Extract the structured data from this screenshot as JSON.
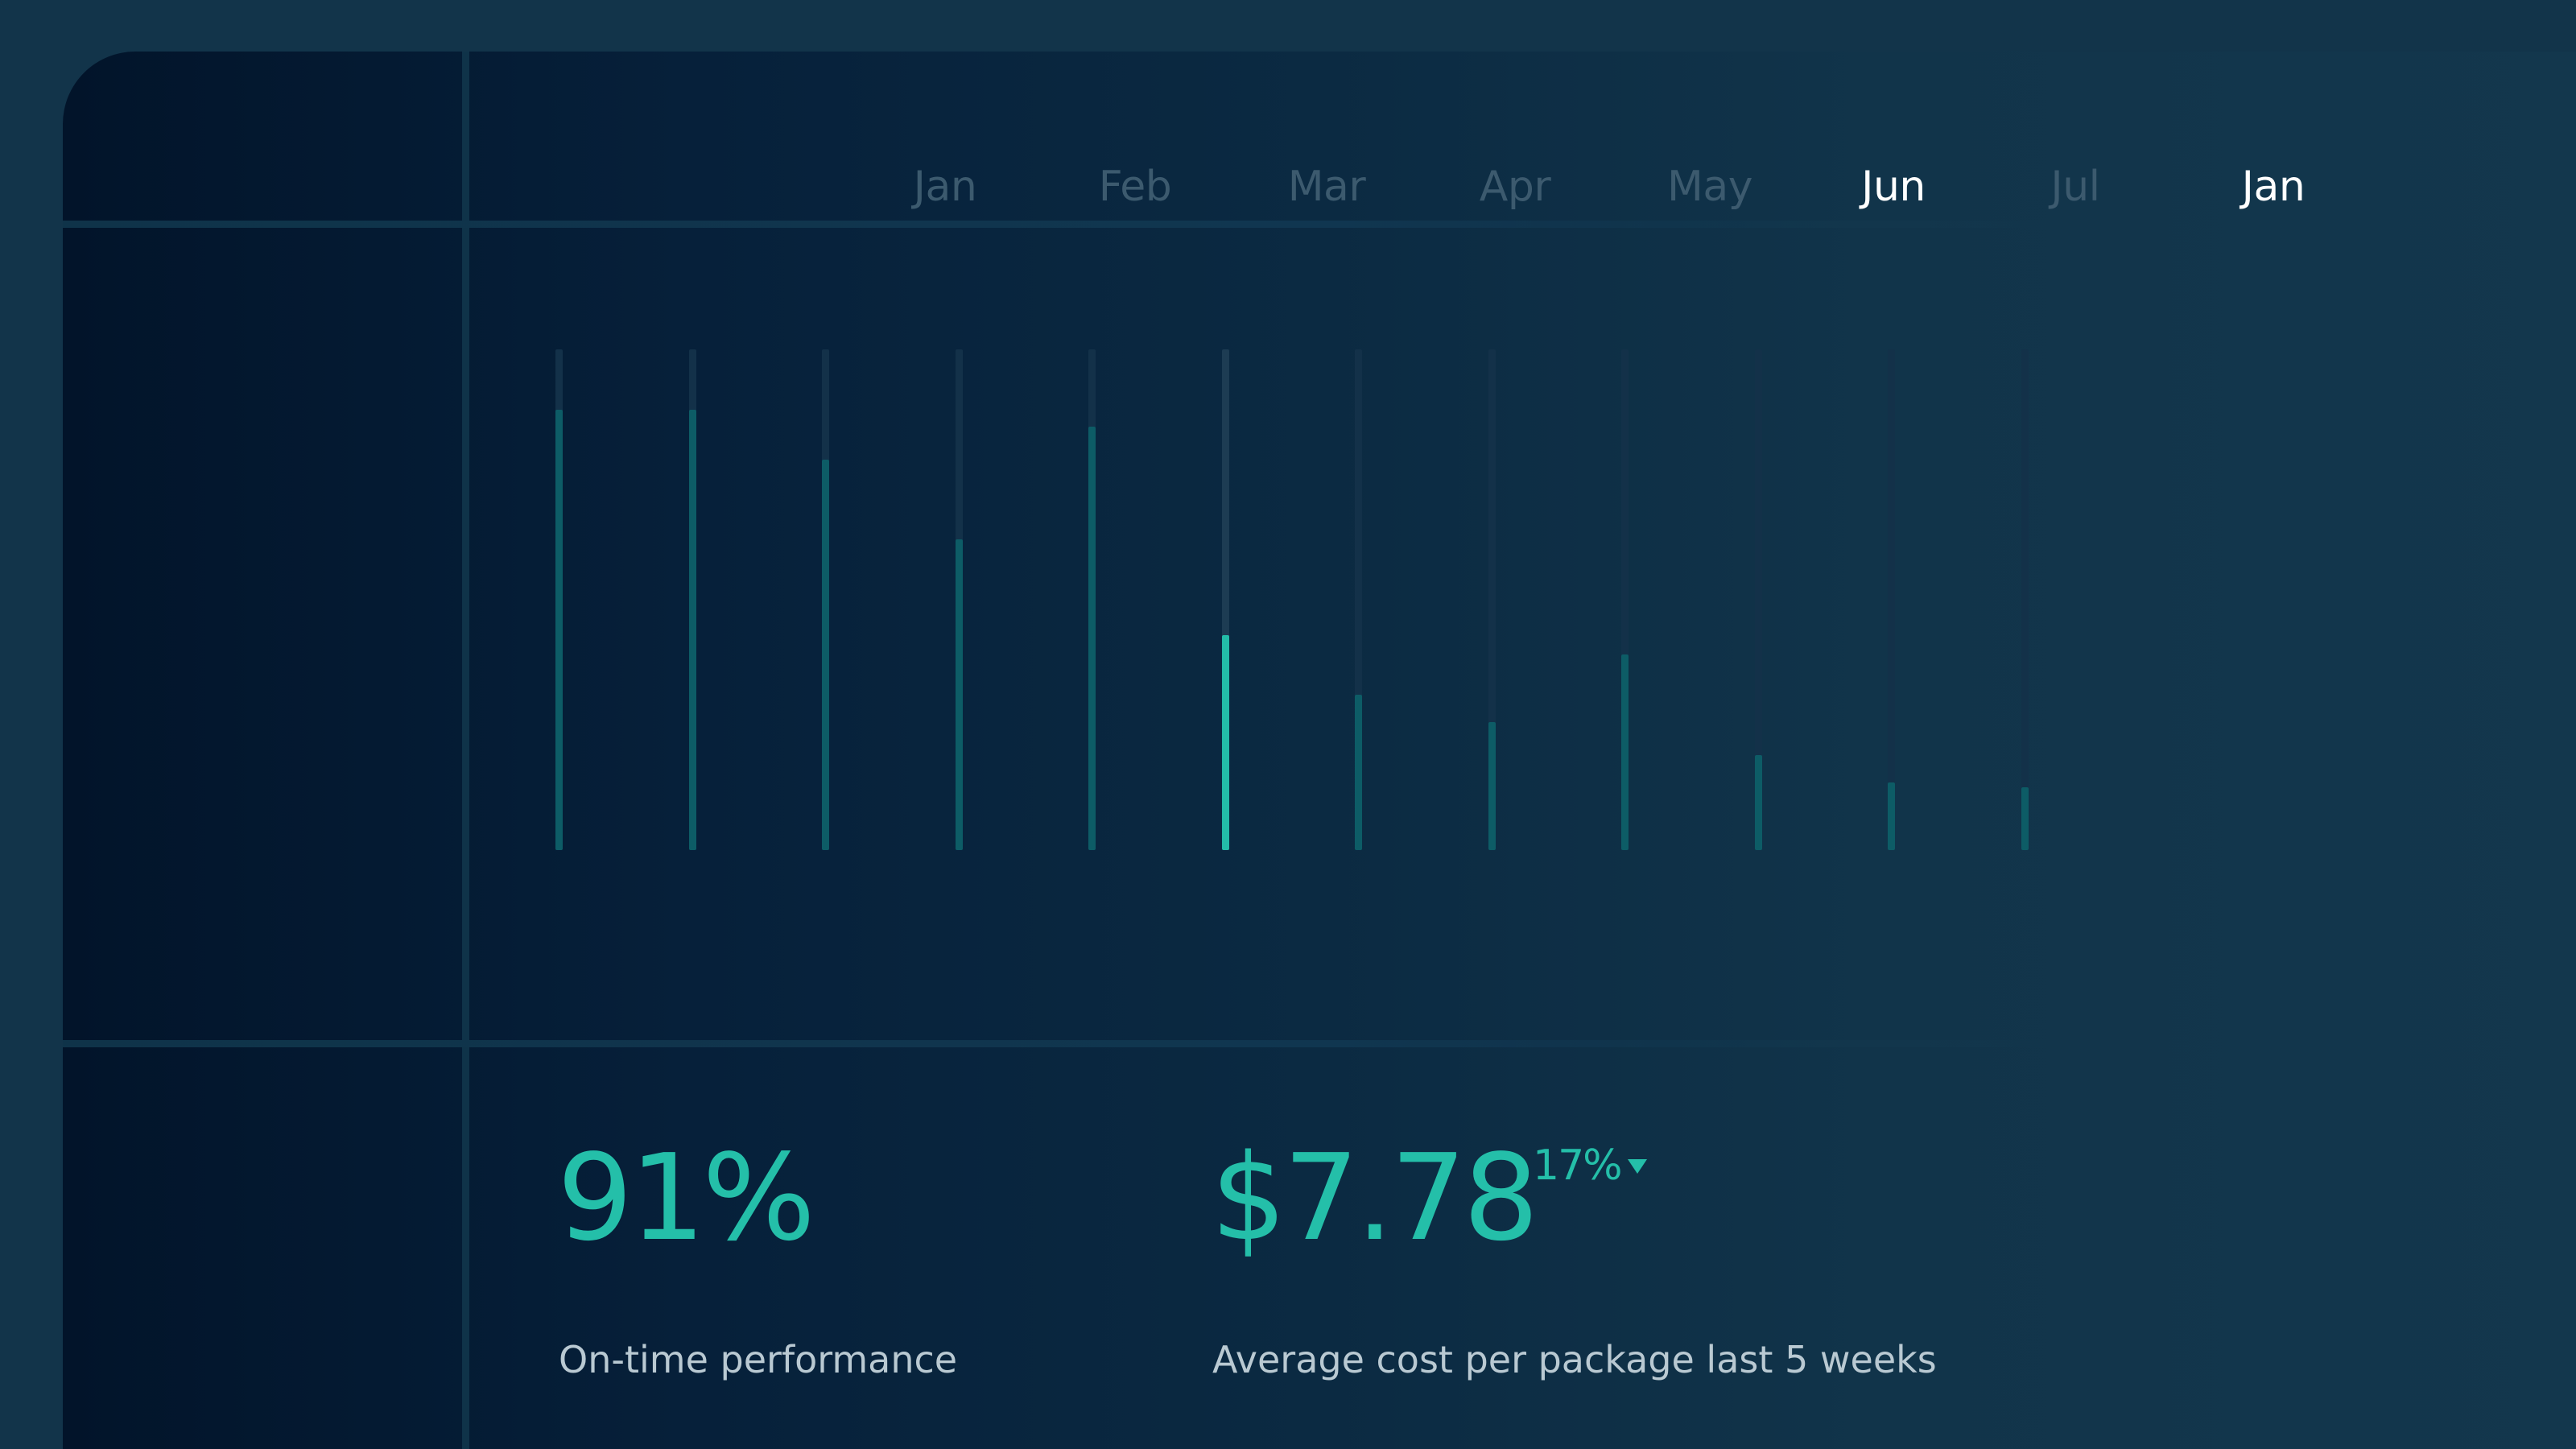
{
  "timeline": {
    "months": [
      {
        "label": "Jan",
        "active": false
      },
      {
        "label": "Feb",
        "active": false
      },
      {
        "label": "Mar",
        "active": false
      },
      {
        "label": "Apr",
        "active": false
      },
      {
        "label": "May",
        "active": false
      },
      {
        "label": "Jun",
        "active": true
      },
      {
        "label": "Jul",
        "active": false
      },
      {
        "label": "Jan",
        "active": true
      }
    ]
  },
  "chart_data": {
    "type": "bar",
    "values": [
      0.88,
      0.88,
      0.78,
      0.62,
      0.845,
      0.43,
      0.31,
      0.255,
      0.39,
      0.19,
      0.135,
      0.125
    ],
    "highlighted_index": 5,
    "ylim": [
      0,
      1
    ],
    "colors": {
      "bar": "#0d5c66",
      "highlight": "#23bca8",
      "track": "#133149"
    }
  },
  "metrics": {
    "on_time": {
      "value": "91%",
      "label": "On-time performance"
    },
    "avg_cost": {
      "value": "$7.78",
      "label": "Average cost per package last 5 weeks",
      "delta": "17%",
      "delta_icon": "triangle-down-icon"
    }
  },
  "colors": {
    "accent": "#24bfa9",
    "active_month": "#ffffff",
    "inactive_month": "#3c5a6e"
  }
}
